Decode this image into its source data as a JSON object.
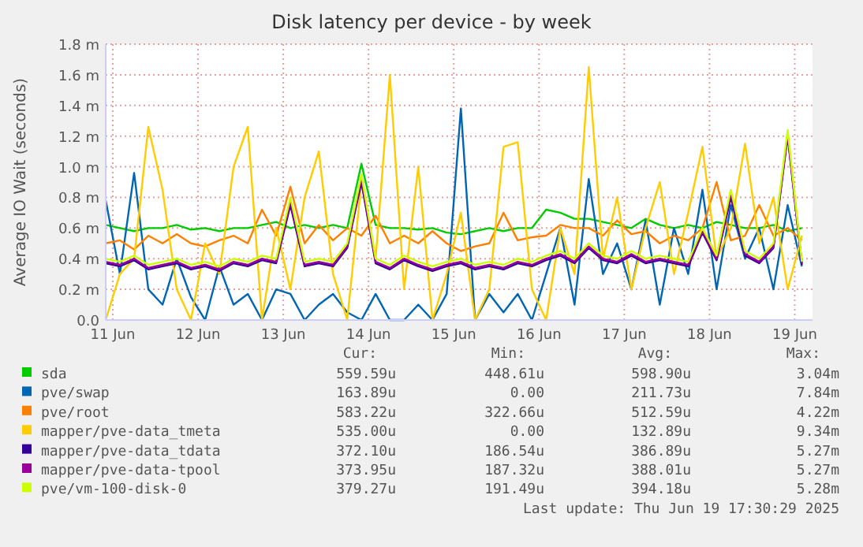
{
  "chart_data": {
    "type": "line",
    "title": "Disk latency per device - by week",
    "ylabel": "Average IO Wait (seconds)",
    "x": [
      "2025-06-11T10:00",
      "2025-06-11T14:00",
      "2025-06-11T18:00",
      "2025-06-11T22:00",
      "2025-06-12T02:00",
      "2025-06-12T06:00",
      "2025-06-12T10:00",
      "2025-06-12T14:00",
      "2025-06-12T18:00",
      "2025-06-12T22:00",
      "2025-06-13T02:00",
      "2025-06-13T06:00",
      "2025-06-13T10:00",
      "2025-06-13T14:00",
      "2025-06-13T18:00",
      "2025-06-13T22:00",
      "2025-06-14T02:00",
      "2025-06-14T06:00",
      "2025-06-14T10:00",
      "2025-06-14T14:00",
      "2025-06-14T18:00",
      "2025-06-14T22:00",
      "2025-06-15T02:00",
      "2025-06-15T06:00",
      "2025-06-15T10:00",
      "2025-06-15T14:00",
      "2025-06-15T18:00",
      "2025-06-15T22:00",
      "2025-06-16T02:00",
      "2025-06-16T06:00",
      "2025-06-16T10:00",
      "2025-06-16T14:00",
      "2025-06-16T18:00",
      "2025-06-16T22:00",
      "2025-06-17T02:00",
      "2025-06-17T06:00",
      "2025-06-17T10:00",
      "2025-06-17T14:00",
      "2025-06-17T18:00",
      "2025-06-17T22:00",
      "2025-06-18T02:00",
      "2025-06-18T06:00",
      "2025-06-18T10:00",
      "2025-06-18T14:00",
      "2025-06-18T18:00",
      "2025-06-18T22:00",
      "2025-06-19T02:00",
      "2025-06-19T06:00",
      "2025-06-19T10:00",
      "2025-06-19T14:00"
    ],
    "xlim": [
      "2025-06-11T10:00",
      "2025-06-19T17:00"
    ],
    "xticks": [
      {
        "value": "2025-06-11T12:00",
        "label": "11 Jun"
      },
      {
        "value": "2025-06-12T12:00",
        "label": "12 Jun"
      },
      {
        "value": "2025-06-13T12:00",
        "label": "13 Jun"
      },
      {
        "value": "2025-06-14T12:00",
        "label": "14 Jun"
      },
      {
        "value": "2025-06-15T12:00",
        "label": "15 Jun"
      },
      {
        "value": "2025-06-16T12:00",
        "label": "16 Jun"
      },
      {
        "value": "2025-06-17T12:00",
        "label": "17 Jun"
      },
      {
        "value": "2025-06-18T12:00",
        "label": "18 Jun"
      },
      {
        "value": "2025-06-19T12:00",
        "label": "19 Jun"
      }
    ],
    "ylim": [
      0,
      1.8
    ],
    "yticks": [
      {
        "value": 0,
        "label": "0.0"
      },
      {
        "value": 0.2,
        "label": "0.2 m"
      },
      {
        "value": 0.4,
        "label": "0.4 m"
      },
      {
        "value": 0.6,
        "label": "0.6 m"
      },
      {
        "value": 0.8,
        "label": "0.8 m"
      },
      {
        "value": 1.0,
        "label": "1.0 m"
      },
      {
        "value": 1.2,
        "label": "1.2 m"
      },
      {
        "value": 1.4,
        "label": "1.4 m"
      },
      {
        "value": 1.6,
        "label": "1.6 m"
      },
      {
        "value": 1.8,
        "label": "1.8 m"
      }
    ],
    "grid": true,
    "legend": "bottom",
    "marker": "none",
    "line_style": "solid",
    "series": [
      {
        "name": "sda",
        "color": "#00cc00",
        "values": [
          0.62,
          0.6,
          0.58,
          0.6,
          0.6,
          0.62,
          0.59,
          0.6,
          0.58,
          0.6,
          0.6,
          0.62,
          0.64,
          0.6,
          0.62,
          0.6,
          0.62,
          0.6,
          1.02,
          0.62,
          0.6,
          0.6,
          0.59,
          0.6,
          0.57,
          0.56,
          0.58,
          0.6,
          0.58,
          0.6,
          0.6,
          0.72,
          0.7,
          0.66,
          0.66,
          0.64,
          0.62,
          0.6,
          0.66,
          0.62,
          0.6,
          0.62,
          0.6,
          0.64,
          0.62,
          0.6,
          0.6,
          0.62,
          0.58,
          0.6
        ]
      },
      {
        "name": "pve/swap",
        "color": "#0066b3",
        "values": [
          0.78,
          0.3,
          0.96,
          0.2,
          0.1,
          0.4,
          0.15,
          0.0,
          0.35,
          0.1,
          0.17,
          0.0,
          0.2,
          0.17,
          0.0,
          0.1,
          0.17,
          0.05,
          0.0,
          0.17,
          0.0,
          0.0,
          0.1,
          0.0,
          0.17,
          1.38,
          0.0,
          0.17,
          0.05,
          0.17,
          0.0,
          0.3,
          0.6,
          0.1,
          0.92,
          0.3,
          0.5,
          0.2,
          0.65,
          0.1,
          0.6,
          0.3,
          0.85,
          0.2,
          0.75,
          0.4,
          0.6,
          0.2,
          0.75,
          0.35
        ]
      },
      {
        "name": "pve/root",
        "color": "#ff8000",
        "values": [
          0.5,
          0.52,
          0.46,
          0.55,
          0.5,
          0.56,
          0.5,
          0.48,
          0.52,
          0.55,
          0.5,
          0.72,
          0.55,
          0.87,
          0.5,
          0.62,
          0.52,
          0.6,
          0.55,
          0.68,
          0.5,
          0.55,
          0.5,
          0.58,
          0.5,
          0.45,
          0.48,
          0.5,
          0.7,
          0.52,
          0.54,
          0.55,
          0.62,
          0.6,
          0.6,
          0.55,
          0.65,
          0.56,
          0.58,
          0.5,
          0.55,
          0.52,
          0.6,
          0.9,
          0.52,
          0.55,
          0.75,
          0.55,
          0.6,
          0.52
        ]
      },
      {
        "name": "mapper/pve-data_tmeta",
        "color": "#ffcc00",
        "values": [
          0,
          0.3,
          0.4,
          1.26,
          0.85,
          0.2,
          0,
          0.5,
          0.3,
          1.0,
          1.26,
          0,
          0.6,
          0.2,
          0.8,
          1.1,
          0.3,
          0,
          0.9,
          0.4,
          1.6,
          0.2,
          1.0,
          0,
          0.3,
          0.7,
          0,
          0.2,
          1.13,
          1.16,
          0.2,
          0,
          0.6,
          0.3,
          1.65,
          0.4,
          0.8,
          0.2,
          0.6,
          0.9,
          0.3,
          0.7,
          1.13,
          0.4,
          0.6,
          1.15,
          0.5,
          0.8,
          0.2,
          0.55
        ]
      },
      {
        "name": "mapper/pve-data_tdata",
        "color": "#330099",
        "values": [
          0.37,
          0.35,
          0.39,
          0.33,
          0.35,
          0.37,
          0.33,
          0.35,
          0.32,
          0.37,
          0.35,
          0.39,
          0.37,
          0.75,
          0.35,
          0.37,
          0.35,
          0.47,
          0.9,
          0.37,
          0.33,
          0.39,
          0.35,
          0.32,
          0.35,
          0.37,
          0.33,
          0.35,
          0.33,
          0.37,
          0.35,
          0.39,
          0.42,
          0.37,
          0.47,
          0.39,
          0.37,
          0.42,
          0.37,
          0.39,
          0.37,
          0.35,
          0.57,
          0.39,
          0.8,
          0.42,
          0.37,
          0.47,
          1.2,
          0.36
        ]
      },
      {
        "name": "mapper/pve-data-tpool",
        "color": "#990099",
        "values": [
          0.38,
          0.36,
          0.4,
          0.34,
          0.36,
          0.38,
          0.34,
          0.36,
          0.33,
          0.38,
          0.36,
          0.4,
          0.38,
          0.77,
          0.36,
          0.38,
          0.36,
          0.48,
          0.92,
          0.38,
          0.34,
          0.4,
          0.36,
          0.33,
          0.36,
          0.38,
          0.34,
          0.36,
          0.34,
          0.38,
          0.36,
          0.4,
          0.43,
          0.38,
          0.48,
          0.4,
          0.38,
          0.43,
          0.38,
          0.4,
          0.38,
          0.36,
          0.58,
          0.4,
          0.82,
          0.43,
          0.38,
          0.48,
          1.21,
          0.37
        ]
      },
      {
        "name": "pve/vm-100-disk-0",
        "color": "#ccff00",
        "values": [
          0.4,
          0.38,
          0.42,
          0.36,
          0.38,
          0.4,
          0.36,
          0.38,
          0.35,
          0.4,
          0.38,
          0.42,
          0.4,
          0.8,
          0.38,
          0.4,
          0.38,
          0.5,
          0.95,
          0.4,
          0.36,
          0.42,
          0.38,
          0.35,
          0.38,
          0.4,
          0.36,
          0.38,
          0.36,
          0.4,
          0.38,
          0.42,
          0.45,
          0.4,
          0.5,
          0.42,
          0.4,
          0.45,
          0.4,
          0.42,
          0.4,
          0.38,
          0.6,
          0.42,
          0.85,
          0.45,
          0.4,
          0.5,
          1.24,
          0.38
        ]
      }
    ],
    "annotations": [
      "Cur:",
      "Min:",
      "Avg:",
      "Max:",
      "559.59u",
      "448.61u",
      "598.90u",
      "3.04m",
      "163.89u",
      "0.00",
      "211.73u",
      "7.84m",
      "583.22u",
      "322.66u",
      "512.59u",
      "4.22m",
      "535.00u",
      "0.00",
      "132.89u",
      "9.34m",
      "372.10u",
      "186.54u",
      "386.89u",
      "5.27m",
      "373.95u",
      "187.32u",
      "388.01u",
      "5.27m",
      "379.27u",
      "191.49u",
      "394.18u",
      "5.28m",
      "Last update: Thu Jun 19 17:30:29 2025"
    ]
  }
}
